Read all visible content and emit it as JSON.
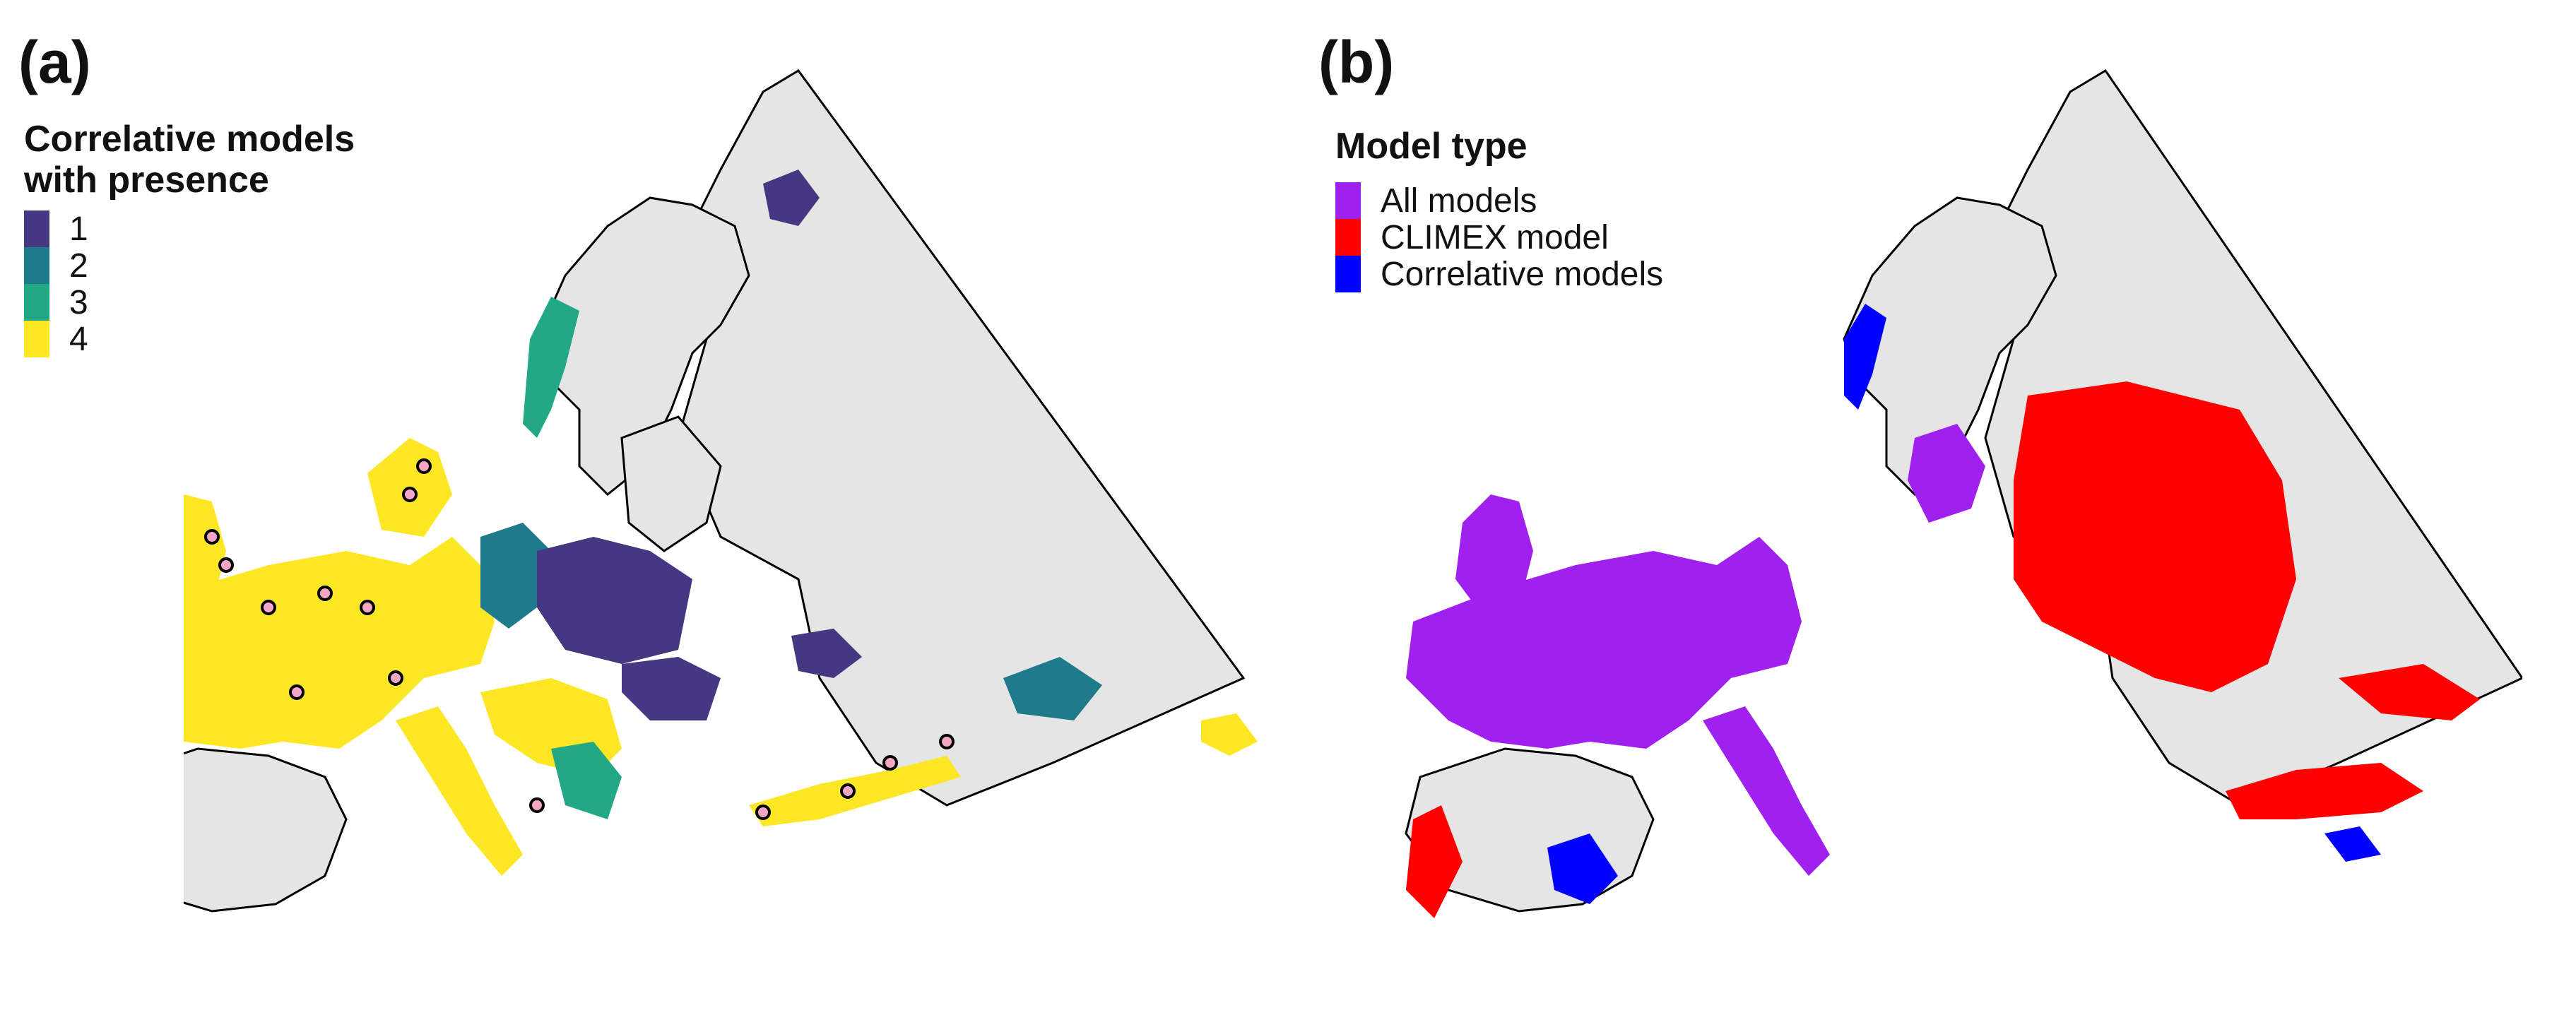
{
  "panel_a": {
    "label": "(a)",
    "legend": {
      "title_line1": "Correlative models",
      "title_line2": "with presence",
      "items": [
        {
          "label": "1",
          "color": "#453781"
        },
        {
          "label": "2",
          "color": "#1f7a8c"
        },
        {
          "label": "3",
          "color": "#22a884"
        },
        {
          "label": "4",
          "color": "#fde725"
        }
      ]
    },
    "occurrence_marker_color": "#f4a6c4"
  },
  "panel_b": {
    "label": "(b)",
    "legend": {
      "title": "Model type",
      "items": [
        {
          "label": "All models",
          "color": "#a020f0"
        },
        {
          "label": "CLIMEX model",
          "color": "#ff0000"
        },
        {
          "label": "Correlative models",
          "color": "#0000ff"
        }
      ]
    }
  },
  "colors": {
    "land_no_presence": "#e5e5e5",
    "border": "#000000",
    "water": "#ffffff"
  }
}
